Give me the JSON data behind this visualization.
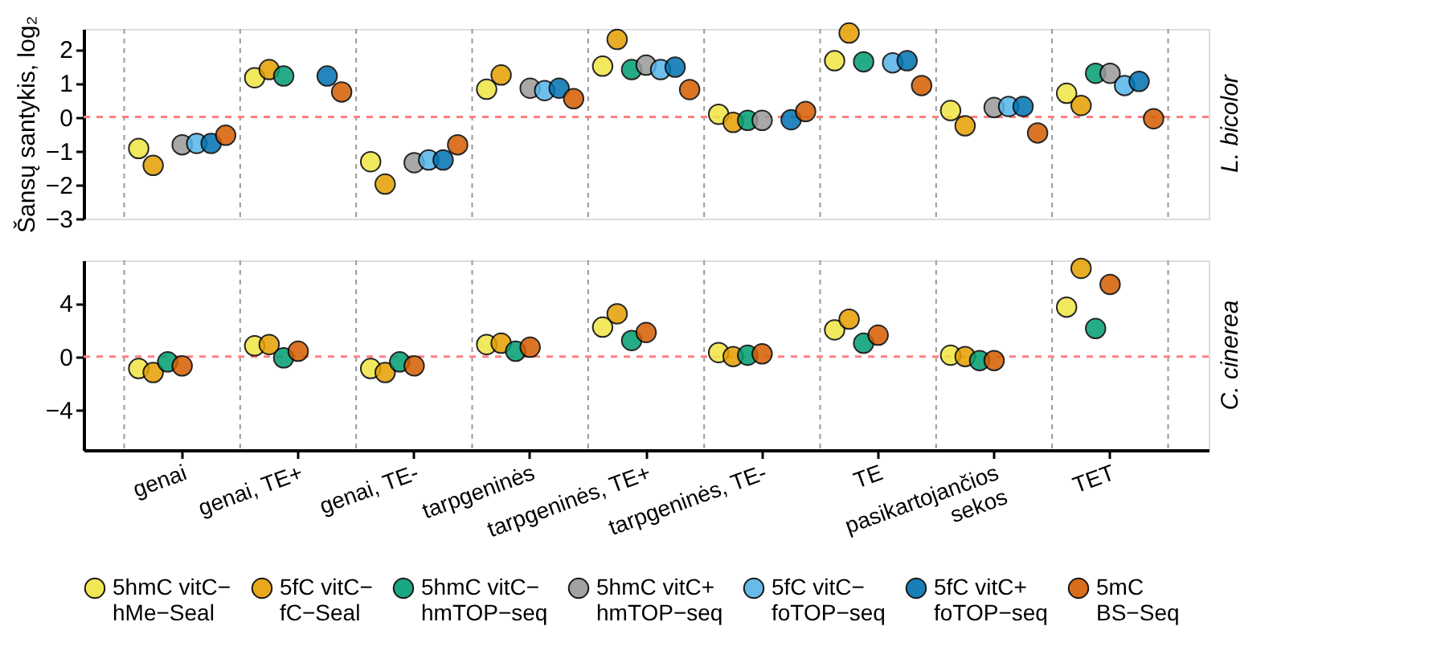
{
  "chart_data": [
    {
      "type": "scatter",
      "annotations": [
        "L. bicolor"
      ],
      "ylabel": "Šansų santykis, log₂",
      "categories": [
        "genai",
        "genai, TE+",
        "genai, TE-",
        "tarpgeninės",
        "tarpgeninės, TE+",
        "tarpgeninės, TE-",
        "TE",
        "pasikartojančios\nsekos",
        "TET"
      ],
      "series": [
        {
          "name": "5hmC vitC−\nhMe−Seal",
          "color": "#f0e442",
          "values": [
            -0.93,
            1.16,
            -1.32,
            0.82,
            1.5,
            0.08,
            1.66,
            0.19,
            0.7
          ]
        },
        {
          "name": "5fC vitC−\nfC−Seal",
          "color": "#e69f00",
          "values": [
            -1.43,
            1.4,
            -1.98,
            1.24,
            2.29,
            -0.16,
            2.48,
            -0.26,
            0.34
          ]
        },
        {
          "name": "5hmC vitC−\nhmTOP−seq",
          "color": "#009e73",
          "values": [
            null,
            1.21,
            null,
            null,
            1.4,
            -0.1,
            1.63,
            null,
            1.29
          ]
        },
        {
          "name": "5hmC vitC+\nhmTOP−seq",
          "color": "#999999",
          "values": [
            -0.82,
            null,
            -1.35,
            0.85,
            1.53,
            -0.1,
            null,
            0.28,
            1.29
          ]
        },
        {
          "name": "5fC vitC−\nfoTOP−seq",
          "color": "#56b4e9",
          "values": [
            -0.78,
            null,
            -1.27,
            0.78,
            1.4,
            null,
            1.6,
            0.31,
            0.93
          ]
        },
        {
          "name": "5fC vitC+\nfoTOP−seq",
          "color": "#0072b2",
          "values": [
            -0.78,
            1.21,
            -1.27,
            0.85,
            1.47,
            -0.08,
            1.66,
            0.31,
            1.05
          ]
        },
        {
          "name": "5mC\nBS−Seq",
          "color": "#d55e00",
          "values": [
            -0.54,
            0.74,
            -0.82,
            0.54,
            0.81,
            0.16,
            0.93,
            -0.47,
            -0.05
          ]
        }
      ],
      "ylim": [
        -3,
        2.6
      ],
      "yticks": [
        -3,
        -2,
        -1,
        0,
        1,
        2
      ],
      "grid": "x",
      "marker": "circle",
      "tick_labels": "y",
      "legend": "bottom",
      "ref_lines": [
        {
          "axis": "y",
          "value": 0,
          "color": "#ff8080",
          "line_style": "dashed"
        }
      ]
    },
    {
      "type": "scatter",
      "annotations": [
        "C. cinerea"
      ],
      "categories": [
        "genai",
        "genai, TE+",
        "genai, TE-",
        "tarpgeninės",
        "tarpgeninės, TE+",
        "tarpgeninės, TE-",
        "TE",
        "pasikartojančios\nsekos",
        "TET"
      ],
      "series": [
        {
          "name": "5hmC vitC−\nhMe−Seal",
          "color": "#f0e442",
          "values": [
            -0.9,
            0.8,
            -0.9,
            0.9,
            2.2,
            0.3,
            2,
            0.1,
            3.7
          ]
        },
        {
          "name": "5fC vitC−\nfC−Seal",
          "color": "#e69f00",
          "values": [
            -1.2,
            0.9,
            -1.2,
            1,
            3.2,
            0,
            2.8,
            0,
            6.6
          ]
        },
        {
          "name": "5hmC vitC−\nhmTOP−seq",
          "color": "#009e73",
          "values": [
            -0.4,
            -0.1,
            -0.4,
            0.4,
            1.2,
            0.1,
            1,
            -0.3,
            2.1
          ]
        },
        {
          "name": "5mC\nBS−Seq",
          "color": "#d55e00",
          "values": [
            -0.7,
            0.4,
            -0.7,
            0.7,
            1.8,
            0.2,
            1.6,
            -0.3,
            5.4
          ]
        }
      ],
      "ylim": [
        -7,
        7.2
      ],
      "yticks": [
        -4,
        0,
        4
      ],
      "grid": "x",
      "marker": "circle",
      "legend": "bottom",
      "ref_lines": [
        {
          "axis": "y",
          "value": 0,
          "color": "#ff8080",
          "line_style": "dashed"
        }
      ]
    }
  ]
}
